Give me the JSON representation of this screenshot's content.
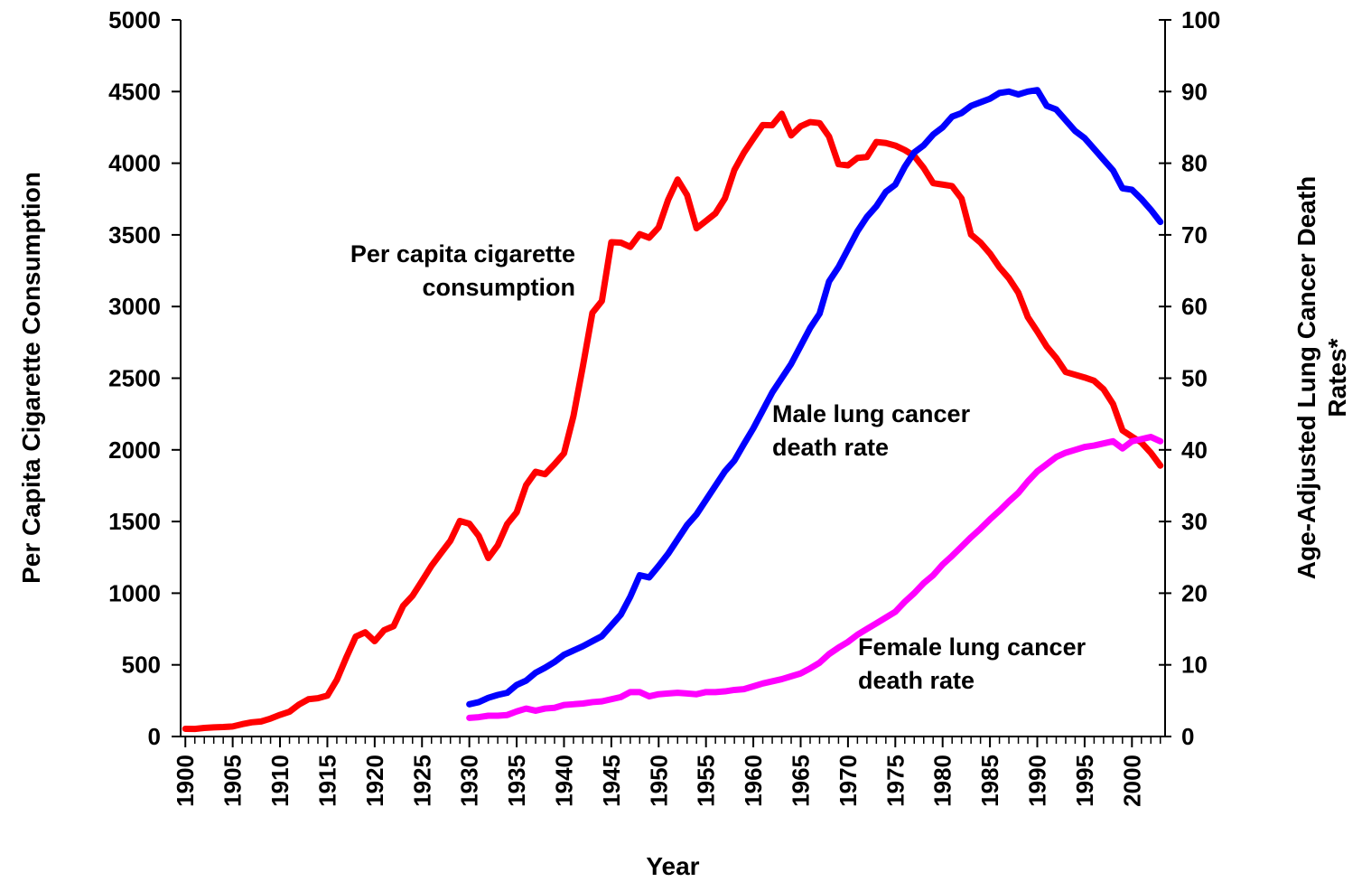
{
  "chart_data": {
    "type": "line",
    "xlabel": "Year",
    "ylabel": "Per Capita Cigarette Consumption",
    "y2label": [
      "Age-Adjusted Lung Cancer Death",
      "Rates*"
    ],
    "annotations": [
      {
        "lines": [
          "Per capita cigarette",
          "consumption"
        ]
      },
      {
        "lines": [
          "Male lung cancer",
          "death rate"
        ]
      },
      {
        "lines": [
          "Female lung cancer",
          "death rate"
        ]
      }
    ],
    "x": [
      1900,
      1901,
      1902,
      1903,
      1904,
      1905,
      1906,
      1907,
      1908,
      1909,
      1910,
      1911,
      1912,
      1913,
      1914,
      1915,
      1916,
      1917,
      1918,
      1919,
      1920,
      1921,
      1922,
      1923,
      1924,
      1925,
      1926,
      1927,
      1928,
      1929,
      1930,
      1931,
      1932,
      1933,
      1934,
      1935,
      1936,
      1937,
      1938,
      1939,
      1940,
      1941,
      1942,
      1943,
      1944,
      1945,
      1946,
      1947,
      1948,
      1949,
      1950,
      1951,
      1952,
      1953,
      1954,
      1955,
      1956,
      1957,
      1958,
      1959,
      1960,
      1961,
      1962,
      1963,
      1964,
      1965,
      1966,
      1967,
      1968,
      1969,
      1970,
      1971,
      1972,
      1973,
      1974,
      1975,
      1976,
      1977,
      1978,
      1979,
      1980,
      1981,
      1982,
      1983,
      1984,
      1985,
      1986,
      1987,
      1988,
      1989,
      1990,
      1991,
      1992,
      1993,
      1994,
      1995,
      1996,
      1997,
      1998,
      1999,
      2000,
      2001,
      2002,
      2003
    ],
    "xlim": [
      1899.5,
      2003.5
    ],
    "xticks": [
      1900,
      1905,
      1910,
      1915,
      1920,
      1925,
      1930,
      1935,
      1940,
      1945,
      1950,
      1955,
      1960,
      1965,
      1970,
      1975,
      1980,
      1985,
      1990,
      1995,
      2000
    ],
    "ylim": [
      0,
      5000
    ],
    "yticks": [
      0,
      500,
      1000,
      1500,
      2000,
      2500,
      3000,
      3500,
      4000,
      4500,
      5000
    ],
    "y2lim": [
      0,
      100
    ],
    "y2ticks": [
      0,
      10,
      20,
      30,
      40,
      50,
      60,
      70,
      80,
      90,
      100
    ],
    "series": [
      {
        "name": "Per capita cigarette consumption",
        "color": "#ff0000",
        "values": [
          54,
          53,
          60,
          64,
          66,
          70,
          86,
          99,
          105,
          125,
          151,
          173,
          223,
          260,
          267,
          285,
          395,
          551,
          697,
          727,
          665,
          742,
          770,
          911,
          982,
          1085,
          1191,
          1279,
          1366,
          1504,
          1485,
          1399,
          1245,
          1334,
          1483,
          1564,
          1754,
          1847,
          1830,
          1900,
          1976,
          2236,
          2585,
          2956,
          3039,
          3449,
          3446,
          3416,
          3505,
          3480,
          3552,
          3744,
          3886,
          3778,
          3546,
          3597,
          3650,
          3755,
          3953,
          4073,
          4171,
          4266,
          4265,
          4345,
          4194,
          4258,
          4287,
          4280,
          4186,
          3993,
          3985,
          4037,
          4043,
          4148,
          4141,
          4123,
          4092,
          4051,
          3967,
          3861,
          3851,
          3840,
          3753,
          3502,
          3446,
          3370,
          3274,
          3197,
          3096,
          2926,
          2826,
          2720,
          2641,
          2543,
          2524,
          2505,
          2482,
          2423,
          2320,
          2136,
          2092,
          2051,
          1979,
          1890
        ]
      },
      {
        "name": "Male lung cancer death rate",
        "color": "#0000ff",
        "axis": "y2",
        "values": [
          null,
          null,
          null,
          null,
          null,
          null,
          null,
          null,
          null,
          null,
          null,
          null,
          null,
          null,
          null,
          null,
          null,
          null,
          null,
          null,
          null,
          null,
          null,
          null,
          null,
          null,
          null,
          null,
          null,
          null,
          4.5,
          4.8,
          5.4,
          5.8,
          6.1,
          7.2,
          7.8,
          8.9,
          9.6,
          10.4,
          11.4,
          12.0,
          12.6,
          13.3,
          14.0,
          15.5,
          17.0,
          19.5,
          22.5,
          22.2,
          23.8,
          25.5,
          27.5,
          29.5,
          31.0,
          33.0,
          35.0,
          37.0,
          38.5,
          40.8,
          43.0,
          45.5,
          48.0,
          50.0,
          52.0,
          54.5,
          57.0,
          59.0,
          63.5,
          65.5,
          68.0,
          70.5,
          72.5,
          74.0,
          76.0,
          77.0,
          79.5,
          81.5,
          82.5,
          84.0,
          85.0,
          86.5,
          87.0,
          88.0,
          88.5,
          89.0,
          89.8,
          90.0,
          89.6,
          90.0,
          90.2,
          88.0,
          87.5,
          86.0,
          84.5,
          83.5,
          82.0,
          80.5,
          79.0,
          76.5,
          76.3,
          75.0,
          73.5,
          71.8
        ]
      },
      {
        "name": "Female lung cancer death rate",
        "color": "#ff00ff",
        "axis": "y2",
        "values": [
          null,
          null,
          null,
          null,
          null,
          null,
          null,
          null,
          null,
          null,
          null,
          null,
          null,
          null,
          null,
          null,
          null,
          null,
          null,
          null,
          null,
          null,
          null,
          null,
          null,
          null,
          null,
          null,
          null,
          null,
          2.6,
          2.7,
          2.9,
          2.9,
          3.0,
          3.5,
          3.9,
          3.6,
          3.9,
          4.0,
          4.4,
          4.5,
          4.6,
          4.8,
          4.9,
          5.2,
          5.5,
          6.2,
          6.2,
          5.6,
          5.9,
          6.0,
          6.1,
          6.0,
          5.9,
          6.2,
          6.2,
          6.3,
          6.5,
          6.6,
          7.0,
          7.4,
          7.7,
          8.0,
          8.4,
          8.8,
          9.5,
          10.3,
          11.5,
          12.4,
          13.2,
          14.2,
          15.0,
          15.8,
          16.6,
          17.4,
          18.8,
          20.0,
          21.4,
          22.5,
          24.0,
          25.2,
          26.5,
          27.8,
          29.0,
          30.3,
          31.5,
          32.8,
          34.0,
          35.6,
          37.0,
          38.0,
          39.0,
          39.6,
          40.0,
          40.4,
          40.6,
          40.9,
          41.2,
          40.2,
          41.2,
          41.5,
          41.8,
          41.2
        ]
      }
    ]
  }
}
